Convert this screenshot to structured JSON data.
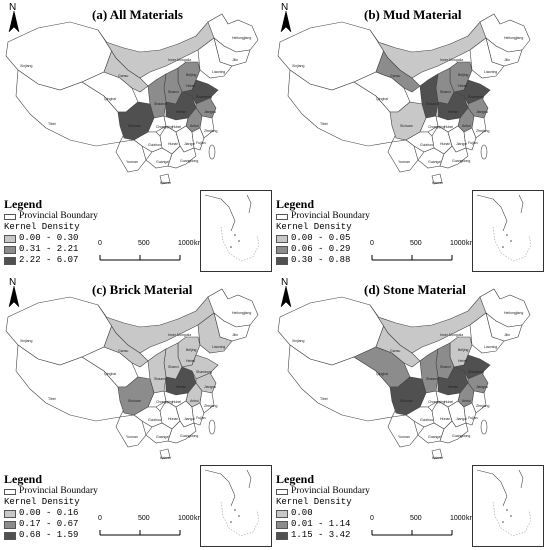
{
  "colors": {
    "level0": "#ffffff",
    "level1": "#c8c8c8",
    "level2": "#8c8c8c",
    "level3": "#505050",
    "boundary": "#444444"
  },
  "scale_bar": {
    "ticks": [
      "0",
      "500",
      "1000"
    ],
    "unit": "km"
  },
  "north_label": "N",
  "province_labels": [
    "Xinjiang",
    "Tibet",
    "Qinghai",
    "Gansu",
    "Inner Mongolia",
    "Heilongjiang",
    "Jilin",
    "Liaoning",
    "Beijing",
    "Hebei",
    "Shanxi",
    "Shaanxi",
    "Henan",
    "Shandong",
    "Sichuan",
    "Hubei",
    "Anhui",
    "Jiangsu",
    "Chongqing",
    "Hunan",
    "Jiangxi",
    "Zhejiang",
    "Guizhou",
    "Yunnan",
    "Guangxi",
    "Guangdong",
    "Fujian",
    "Hainan"
  ],
  "panels": [
    {
      "title": "(a) All Materials",
      "legend": {
        "title": "Legend",
        "boundary": "Provincial Boundary",
        "density_label": "Kernel Density",
        "classes": [
          {
            "range": "0.00 - 0.30",
            "level": 1
          },
          {
            "range": "0.31 - 2.21",
            "level": 2
          },
          {
            "range": "2.22 - 6.07",
            "level": 3
          }
        ]
      },
      "shading": {
        "Gansu": 1,
        "Shaanxi": 2,
        "Shanxi": 2,
        "Hebei": 2,
        "Henan": 3,
        "Shandong": 3,
        "Anhui": 2,
        "Jiangsu": 2,
        "Sichuan": 3,
        "Inner Mongolia": 1,
        "Qinghai": 0
      }
    },
    {
      "title": "(b) Mud Material",
      "legend": {
        "title": "Legend",
        "boundary": "Provincial Boundary",
        "density_label": "Kernel Density",
        "classes": [
          {
            "range": "0.00 - 0.05",
            "level": 1
          },
          {
            "range": "0.06 - 0.29",
            "level": 2
          },
          {
            "range": "0.30 - 0.88",
            "level": 3
          }
        ]
      },
      "shading": {
        "Gansu": 2,
        "Shaanxi": 3,
        "Shanxi": 2,
        "Hebei": 2,
        "Henan": 3,
        "Shandong": 3,
        "Anhui": 2,
        "Jiangsu": 2,
        "Sichuan": 1,
        "Inner Mongolia": 1
      }
    },
    {
      "title": "(c) Brick Material",
      "legend": {
        "title": "Legend",
        "boundary": "Provincial Boundary",
        "density_label": "Kernel Density",
        "classes": [
          {
            "range": "0.00 - 0.16",
            "level": 1
          },
          {
            "range": "0.17 - 0.67",
            "level": 2
          },
          {
            "range": "0.68 - 1.59",
            "level": 3
          }
        ]
      },
      "shading": {
        "Gansu": 1,
        "Shaanxi": 1,
        "Shanxi": 1,
        "Hebei": 1,
        "Henan": 3,
        "Shandong": 1,
        "Anhui": 1,
        "Jiangsu": 1,
        "Sichuan": 2,
        "Inner Mongolia": 1,
        "Liaoning": 1
      }
    },
    {
      "title": "(d) Stone Material",
      "legend": {
        "title": "Legend",
        "boundary": "Provincial Boundary",
        "density_label": "Kernel Density",
        "classes": [
          {
            "range": "0.00",
            "level": 1
          },
          {
            "range": "0.01 - 1.14",
            "level": 2
          },
          {
            "range": "1.15 - 3.42",
            "level": 3
          }
        ]
      },
      "shading": {
        "Gansu": 1,
        "Shaanxi": 2,
        "Shanxi": 2,
        "Hebei": 1,
        "Henan": 3,
        "Shandong": 3,
        "Anhui": 2,
        "Jiangsu": 2,
        "Sichuan": 3,
        "Qinghai": 2,
        "Inner Mongolia": 1
      }
    }
  ]
}
